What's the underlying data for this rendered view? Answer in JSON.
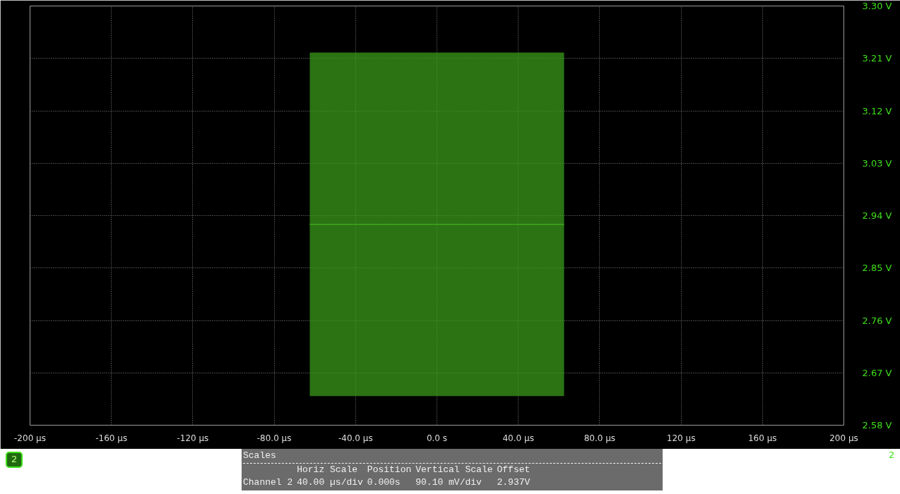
{
  "chart_data": {
    "type": "line",
    "series": [
      {
        "color": "#3a9a1a",
        "x": [
          -62.5,
          62.5
        ],
        "values": [
          2.925,
          2.925
        ],
        "lower": [
          2.63,
          2.63
        ],
        "upper": [
          3.22,
          3.22
        ]
      }
    ],
    "xlim": [
      -200,
      200
    ],
    "xticks": [
      {
        "value": -200,
        "label": "-200 µs"
      },
      {
        "value": -160,
        "label": "-160 µs"
      },
      {
        "value": -120,
        "label": "-120 µs"
      },
      {
        "value": -80,
        "label": "-80.0 µs"
      },
      {
        "value": -40,
        "label": "-40.0 µs"
      },
      {
        "value": 0,
        "label": "0.0 s"
      },
      {
        "value": 40,
        "label": "40.0 µs"
      },
      {
        "value": 80,
        "label": "80.0 µs"
      },
      {
        "value": 120,
        "label": "120 µs"
      },
      {
        "value": 160,
        "label": "160 µs"
      },
      {
        "value": 200,
        "label": "200 µs"
      }
    ],
    "ylim": [
      2.58,
      3.3
    ],
    "yticks": [
      {
        "value": 2.58,
        "label": "2.58 V"
      },
      {
        "value": 2.67,
        "label": "2.67 V"
      },
      {
        "value": 2.76,
        "label": "2.76 V"
      },
      {
        "value": 2.85,
        "label": "2.85 V"
      },
      {
        "value": 2.94,
        "label": "2.94 V"
      },
      {
        "value": 3.03,
        "label": "3.03 V"
      },
      {
        "value": 3.12,
        "label": "3.12 V"
      },
      {
        "value": 3.21,
        "label": "3.21 V"
      },
      {
        "value": 3.3,
        "label": "3.30 V"
      }
    ],
    "grid": true,
    "annotations": [
      "2",
      "2",
      "Scales",
      "Horiz Scale",
      "Position",
      "Vertical Scale",
      "Offset",
      "Channel 2",
      "40.00 µs/div",
      "0.000s",
      "90.10 mV/div",
      "2.937V"
    ]
  }
}
